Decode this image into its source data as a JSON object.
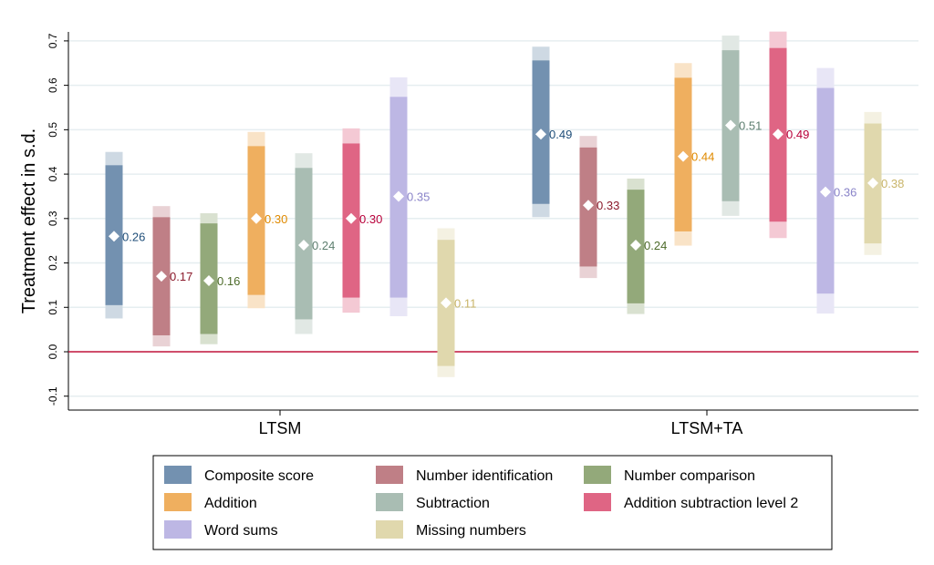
{
  "chart_data": {
    "type": "bar",
    "subtype": "confidence-interval bars with point estimates",
    "ylabel": "Treatment effect in s.d.",
    "xlabel": "",
    "ylim": [
      -0.12,
      0.72
    ],
    "yticks": [
      "-0.1",
      "0.0",
      "0.1",
      "0.2",
      "0.3",
      "0.4",
      "0.5",
      "0.6",
      "0.7"
    ],
    "grid": true,
    "reference_line": {
      "y": 0,
      "color": "#c0143c"
    },
    "categories": [
      "LTSM",
      "LTSM+TA"
    ],
    "legend_position": "bottom",
    "series": [
      {
        "name": "Composite score",
        "color": "#7391b0",
        "label_color": "#1f4e79",
        "points": [
          {
            "estimate": 0.26,
            "ci90": [
              0.105,
              0.42
            ],
            "ci95": [
              0.075,
              0.45
            ]
          },
          {
            "estimate": 0.49,
            "ci90": [
              0.333,
              0.656
            ],
            "ci95": [
              0.303,
              0.687
            ]
          }
        ]
      },
      {
        "name": "Number identification",
        "color": "#bf7f86",
        "label_color": "#8b1a2b",
        "points": [
          {
            "estimate": 0.17,
            "ci90": [
              0.037,
              0.303
            ],
            "ci95": [
              0.012,
              0.328
            ]
          },
          {
            "estimate": 0.33,
            "ci90": [
              0.192,
              0.46
            ],
            "ci95": [
              0.166,
              0.486
            ]
          }
        ]
      },
      {
        "name": "Number comparison",
        "color": "#93a97a",
        "label_color": "#4d6b2a",
        "points": [
          {
            "estimate": 0.16,
            "ci90": [
              0.04,
              0.289
            ],
            "ci95": [
              0.017,
              0.312
            ]
          },
          {
            "estimate": 0.24,
            "ci90": [
              0.109,
              0.365
            ],
            "ci95": [
              0.085,
              0.39
            ]
          }
        ]
      },
      {
        "name": "Addition",
        "color": "#efaf5f",
        "label_color": "#e08a00",
        "points": [
          {
            "estimate": 0.3,
            "ci90": [
              0.128,
              0.463
            ],
            "ci95": [
              0.098,
              0.495
            ]
          },
          {
            "estimate": 0.44,
            "ci90": [
              0.271,
              0.617
            ],
            "ci95": [
              0.239,
              0.65
            ]
          }
        ]
      },
      {
        "name": "Subtraction",
        "color": "#a9bdb3",
        "label_color": "#5e7f70",
        "points": [
          {
            "estimate": 0.24,
            "ci90": [
              0.073,
              0.414
            ],
            "ci95": [
              0.04,
              0.447
            ]
          },
          {
            "estimate": 0.51,
            "ci90": [
              0.339,
              0.679
            ],
            "ci95": [
              0.306,
              0.712
            ]
          }
        ]
      },
      {
        "name": "Addition subtraction level 2",
        "color": "#df6584",
        "label_color": "#b8003a",
        "points": [
          {
            "estimate": 0.3,
            "ci90": [
              0.122,
              0.469
            ],
            "ci95": [
              0.088,
              0.503
            ]
          },
          {
            "estimate": 0.49,
            "ci90": [
              0.293,
              0.684
            ],
            "ci95": [
              0.256,
              0.721
            ]
          }
        ]
      },
      {
        "name": "Word sums",
        "color": "#bdb7e4",
        "label_color": "#8a84c9",
        "points": [
          {
            "estimate": 0.35,
            "ci90": [
              0.122,
              0.574
            ],
            "ci95": [
              0.08,
              0.618
            ]
          },
          {
            "estimate": 0.36,
            "ci90": [
              0.131,
              0.594
            ],
            "ci95": [
              0.086,
              0.639
            ]
          }
        ]
      },
      {
        "name": "Missing numbers",
        "color": "#e0d8ad",
        "label_color": "#c9b56a",
        "points": [
          {
            "estimate": 0.11,
            "ci90": [
              -0.032,
              0.252
            ],
            "ci95": [
              -0.057,
              0.278
            ]
          },
          {
            "estimate": 0.38,
            "ci90": [
              0.244,
              0.514
            ],
            "ci95": [
              0.218,
              0.54
            ]
          }
        ]
      }
    ]
  }
}
